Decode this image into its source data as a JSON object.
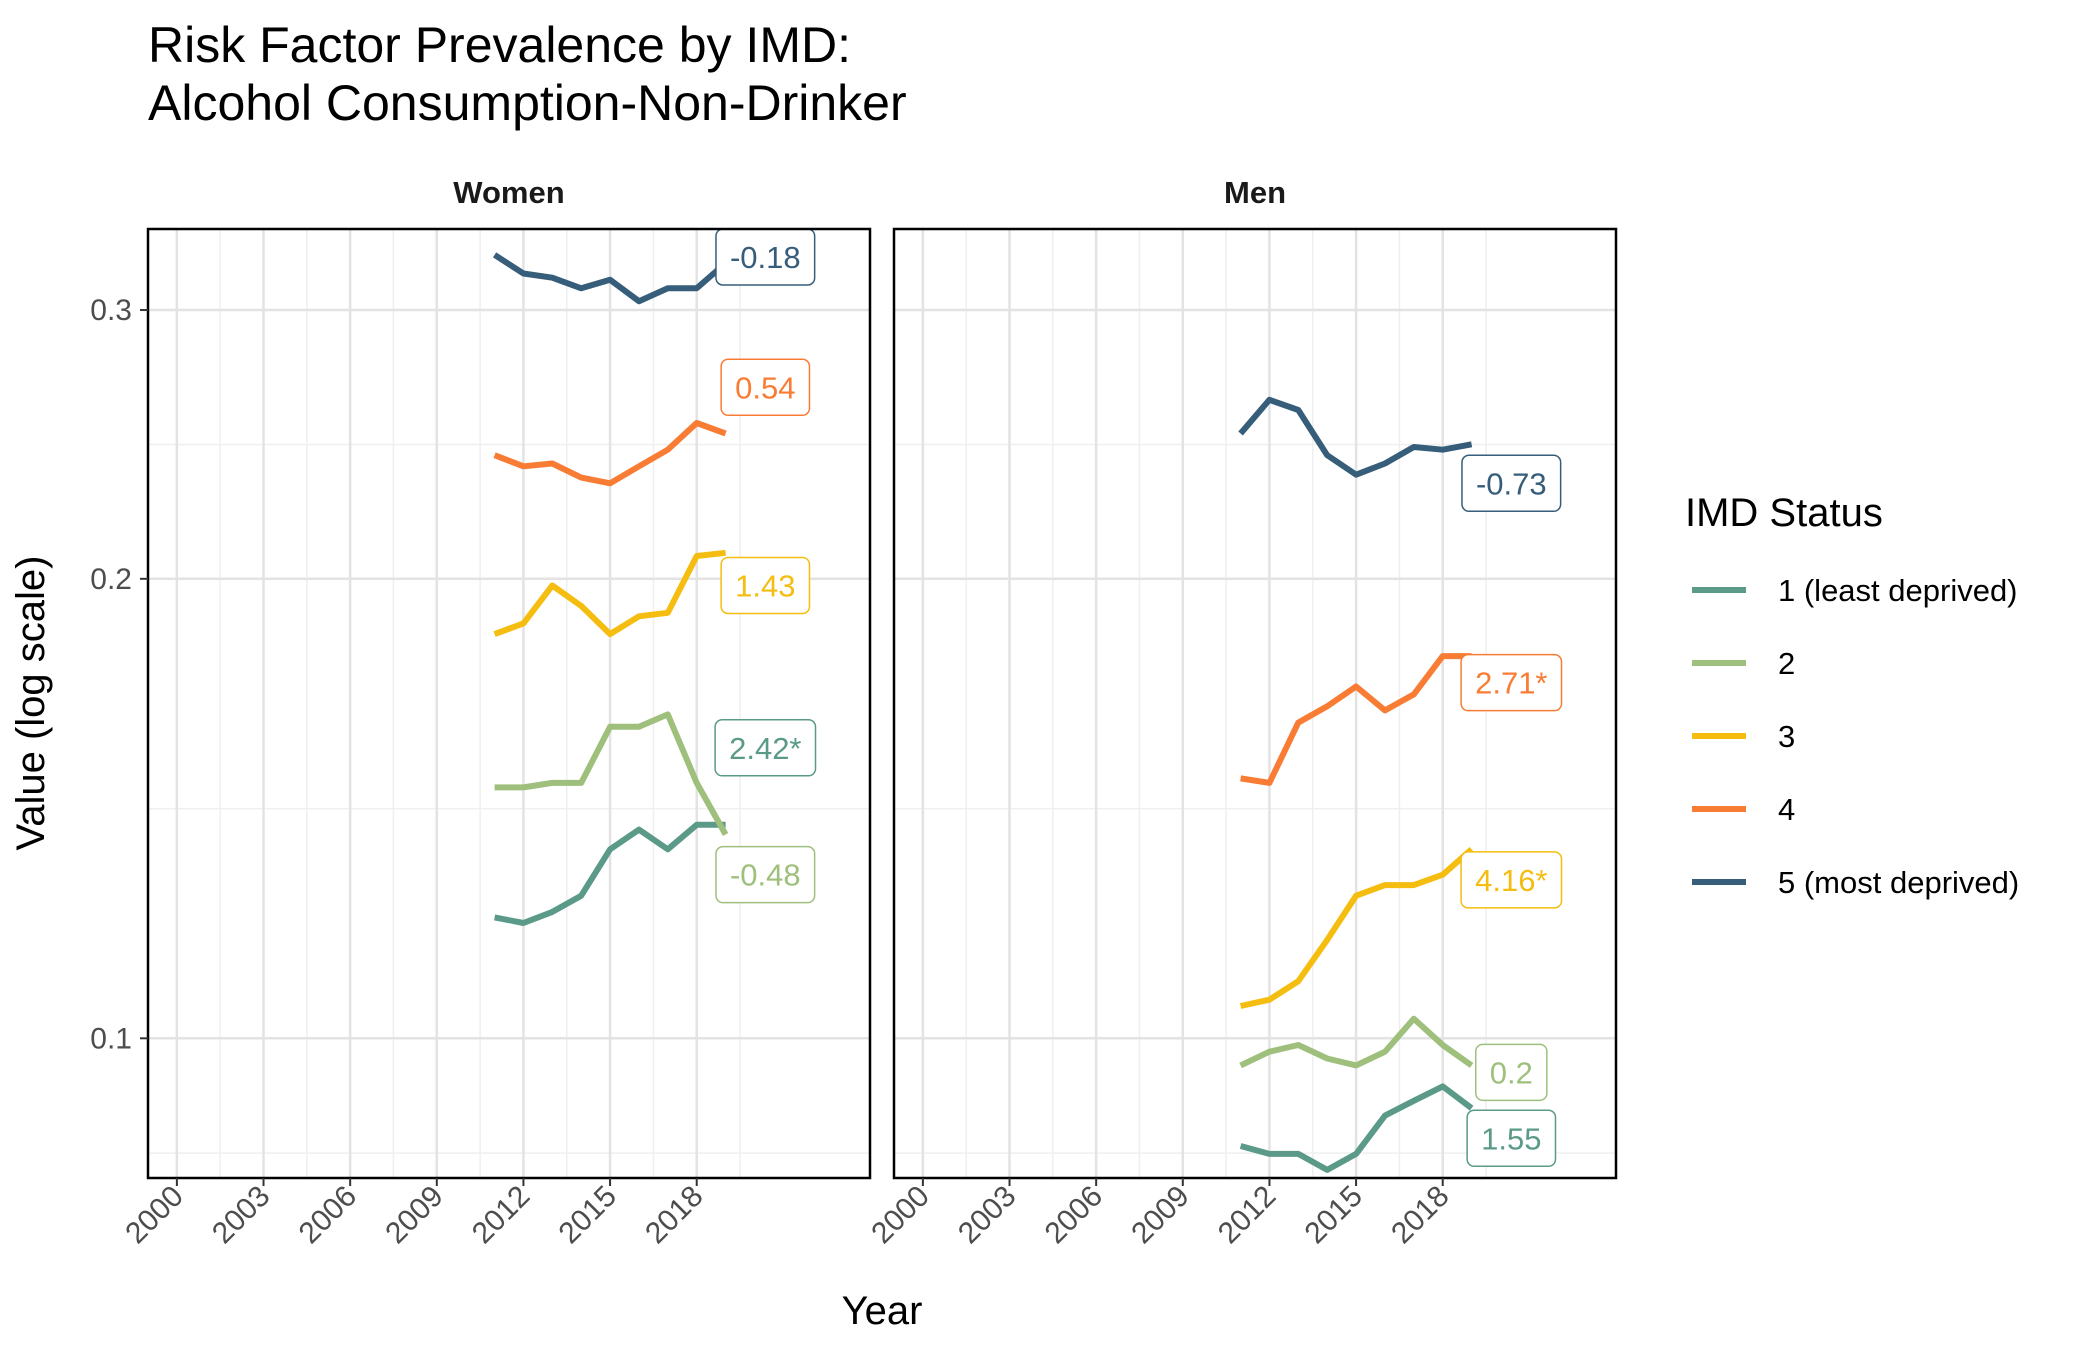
{
  "chart_data": {
    "type": "line",
    "title_lines": [
      "Risk Factor Prevalence by IMD:",
      "Alcohol Consumption-Non-Drinker"
    ],
    "xlabel": "Year",
    "ylabel": "Value (log scale)",
    "y_scale": "log",
    "xlim": [
      1999,
      2024
    ],
    "ylim": [
      0.081,
      0.339
    ],
    "x_ticks": [
      2000,
      2003,
      2006,
      2009,
      2012,
      2015,
      2018
    ],
    "y_ticks": [
      0.1,
      0.2,
      0.3
    ],
    "y_tick_labels": [
      "0.1",
      "0.2",
      "0.3"
    ],
    "grid": true,
    "legend": {
      "title": "IMD Status",
      "position": "right",
      "entries": [
        {
          "label": "1 (least deprived)",
          "color": "#5b9a88"
        },
        {
          "label": "2",
          "color": "#9ec07c"
        },
        {
          "label": "3",
          "color": "#f5bd10"
        },
        {
          "label": "4",
          "color": "#f97c35"
        },
        {
          "label": "5 (most deprived)",
          "color": "#365d7a"
        }
      ]
    },
    "x": [
      2011,
      2012,
      2013,
      2014,
      2015,
      2016,
      2017,
      2018,
      2019
    ],
    "panels": [
      {
        "name": "Women",
        "series": [
          {
            "name": "1 (least deprived)",
            "values": [
              0.12,
              0.119,
              0.121,
              0.124,
              0.133,
              0.137,
              0.133,
              0.138,
              0.138
            ],
            "annotation": {
              "text": "2.42*",
              "y": 0.155
            }
          },
          {
            "name": "2",
            "values": [
              0.146,
              0.146,
              0.147,
              0.147,
              0.16,
              0.16,
              0.163,
              0.147,
              0.136
            ],
            "annotation": {
              "text": "-0.48",
              "y": 0.128
            }
          },
          {
            "name": "3",
            "values": [
              0.184,
              0.187,
              0.198,
              0.192,
              0.184,
              0.189,
              0.19,
              0.207,
              0.208
            ],
            "annotation": {
              "text": "1.43",
              "y": 0.198
            }
          },
          {
            "name": "4",
            "values": [
              0.241,
              0.237,
              0.238,
              0.233,
              0.231,
              0.237,
              0.243,
              0.253,
              0.249
            ],
            "annotation": {
              "text": "0.54",
              "y": 0.267
            }
          },
          {
            "name": "5 (most deprived)",
            "values": [
              0.326,
              0.317,
              0.315,
              0.31,
              0.314,
              0.304,
              0.31,
              0.31,
              0.322
            ],
            "annotation": {
              "text": "-0.18",
              "y": 0.325
            }
          }
        ]
      },
      {
        "name": "Men",
        "series": [
          {
            "name": "1 (least deprived)",
            "values": [
              0.085,
              0.084,
              0.084,
              0.082,
              0.084,
              0.089,
              0.091,
              0.093,
              0.09
            ],
            "annotation": {
              "text": "1.55",
              "y": 0.086
            }
          },
          {
            "name": "2",
            "values": [
              0.096,
              0.098,
              0.099,
              0.097,
              0.096,
              0.098,
              0.103,
              0.099,
              0.096
            ],
            "annotation": {
              "text": "0.2",
              "y": 0.095
            }
          },
          {
            "name": "3",
            "values": [
              0.105,
              0.106,
              0.109,
              0.116,
              0.124,
              0.126,
              0.126,
              0.128,
              0.133
            ],
            "annotation": {
              "text": "4.16*",
              "y": 0.127
            }
          },
          {
            "name": "4",
            "values": [
              0.148,
              0.147,
              0.161,
              0.165,
              0.17,
              0.164,
              0.168,
              0.178,
              0.178
            ],
            "annotation": {
              "text": "2.71*",
              "y": 0.171
            }
          },
          {
            "name": "5 (most deprived)",
            "values": [
              0.249,
              0.262,
              0.258,
              0.241,
              0.234,
              0.238,
              0.244,
              0.243,
              0.245
            ],
            "annotation": {
              "text": "-0.73",
              "y": 0.231
            }
          }
        ]
      }
    ]
  }
}
